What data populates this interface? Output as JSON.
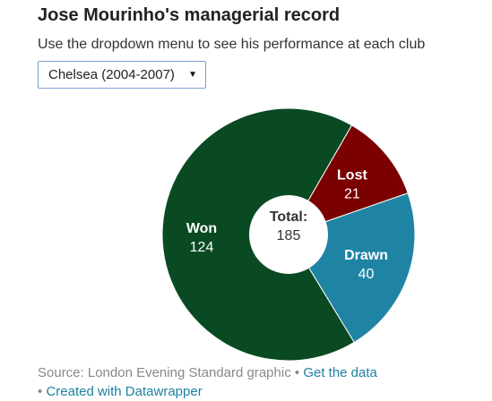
{
  "header": {
    "title": "Jose Mourinho's managerial record",
    "subtitle": "Use the dropdown menu to see his performance at each club"
  },
  "dropdown": {
    "selected": "Chelsea (2004-2007)",
    "caret_icon": "triangle-down-icon"
  },
  "chart_data": {
    "type": "pie",
    "variant": "donut",
    "slices": [
      {
        "label": "Won",
        "value": 124,
        "color": "#0a4a22"
      },
      {
        "label": "Lost",
        "value": 21,
        "color": "#7b0000"
      },
      {
        "label": "Drawn",
        "value": 40,
        "color": "#1f84a4"
      }
    ],
    "center_label": "Total:",
    "center_value": "185",
    "title": "Jose Mourinho's managerial record",
    "legend": "none"
  },
  "footer": {
    "source": "Source: London Evening Standard graphic",
    "separator": "•",
    "get_data": "Get the data",
    "created_with": "Created with Datawrapper"
  }
}
